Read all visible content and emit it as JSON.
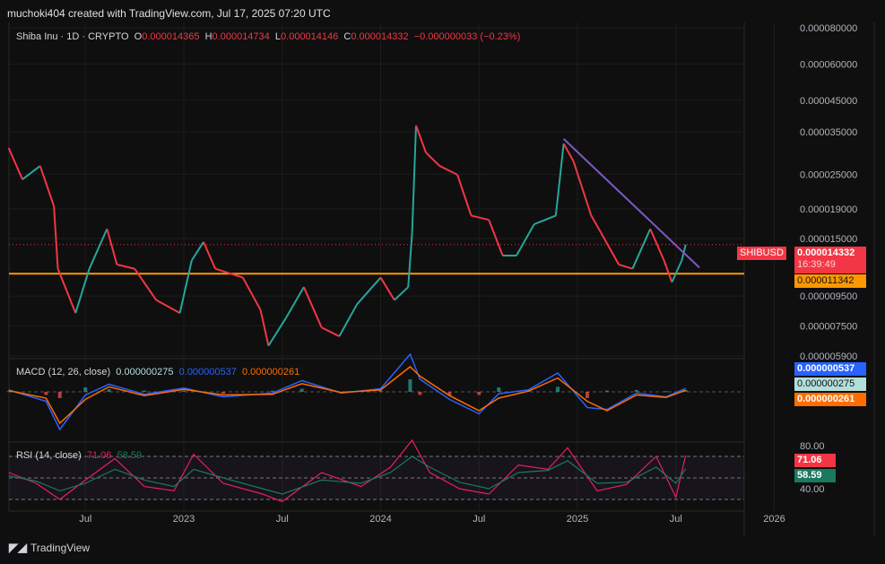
{
  "header": {
    "text": "muchoki404 created with TradingView.com, Jul 17, 2025 07:20 UTC"
  },
  "legend": {
    "symbol": "Shiba Inu · 1D · CRYPTO",
    "o_label": "O",
    "o": "0.000014365",
    "h_label": "H",
    "h": "0.000014734",
    "l_label": "L",
    "l": "0.000014146",
    "c_label": "C",
    "c": "0.000014332",
    "change": "−0.000000033 (−0.23%)"
  },
  "price_tag": {
    "ticker": "SHIBUSD",
    "price": "0.000014332",
    "countdown": "16:39:49"
  },
  "support_tag": "0.000011342",
  "macd": {
    "label": "MACD (12, 26, close)",
    "hist": "0.000000275",
    "macd": "0.000000537",
    "signal": "0.000000261"
  },
  "rsi": {
    "label": "RSI (14, close)",
    "rsi": "71.06",
    "ma": "58.59"
  },
  "footer": {
    "brand": "TradingView"
  },
  "colors": {
    "up": "#26a69a",
    "down": "#f23645",
    "trend": "#7e57c2",
    "support": "#ff9800",
    "macd": "#2962ff",
    "signal": "#ff6d00",
    "rsi": "#e91e63",
    "rsi_ma": "#1b7a5e"
  },
  "chart_data": {
    "type": "line",
    "price_scale": "log",
    "y_ticks": [
      "0.000080000",
      "0.000060000",
      "0.000045000",
      "0.000035000",
      "0.000025000",
      "0.000019000",
      "0.000015000",
      "0.000009500",
      "0.000007500",
      "0.000005900"
    ],
    "y_tick_values": [
      8e-05,
      6e-05,
      4.5e-05,
      3.5e-05,
      2.5e-05,
      1.9e-05,
      1.5e-05,
      9.5e-06,
      7.5e-06,
      5.9e-06
    ],
    "x_ticks": [
      {
        "label": "Jul",
        "t": 2022.5
      },
      {
        "label": "2023",
        "t": 2023.0
      },
      {
        "label": "Jul",
        "t": 2023.5
      },
      {
        "label": "2024",
        "t": 2024.0
      },
      {
        "label": "Jul",
        "t": 2024.5
      },
      {
        "label": "2025",
        "t": 2025.0
      },
      {
        "label": "Jul",
        "t": 2025.5
      },
      {
        "label": "2026",
        "t": 2026.0
      }
    ],
    "price_series": {
      "t": [
        2022.11,
        2022.18,
        2022.27,
        2022.34,
        2022.36,
        2022.45,
        2022.52,
        2022.61,
        2022.66,
        2022.75,
        2022.86,
        2022.98,
        2023.04,
        2023.1,
        2023.16,
        2023.3,
        2023.39,
        2023.43,
        2023.52,
        2023.61,
        2023.7,
        2023.79,
        2023.88,
        2024.0,
        2024.07,
        2024.14,
        2024.16,
        2024.18,
        2024.23,
        2024.3,
        2024.39,
        2024.46,
        2024.55,
        2024.62,
        2024.69,
        2024.78,
        2024.89,
        2024.93,
        2024.98,
        2025.07,
        2025.12,
        2025.21,
        2025.28,
        2025.37,
        2025.44,
        2025.48,
        2025.53,
        2025.55
      ],
      "close": [
        3.08e-05,
        2.4e-05,
        2.67e-05,
        1.94e-05,
        1.18e-05,
        8.3e-06,
        1.18e-05,
        1.62e-05,
        1.22e-05,
        1.18e-05,
        9.2e-06,
        8.3e-06,
        1.26e-05,
        1.46e-05,
        1.18e-05,
        1.1e-05,
        8.5e-06,
        6.4e-06,
        8e-06,
        1.02e-05,
        7.4e-06,
        6.9e-06,
        8.9e-06,
        1.1e-05,
        9.2e-06,
        1.02e-05,
        1.57e-05,
        3.68e-05,
        2.97e-05,
        2.67e-05,
        2.49e-05,
        1.8e-05,
        1.74e-05,
        1.31e-05,
        1.31e-05,
        1.68e-05,
        1.8e-05,
        3.19e-05,
        2.77e-05,
        1.8e-05,
        1.57e-05,
        1.22e-05,
        1.18e-05,
        1.62e-05,
        1.26e-05,
        1.06e-05,
        1.26e-05,
        1.43e-05
      ]
    },
    "trendline": {
      "t": [
        2024.93,
        2025.62
      ],
      "price": [
        3.31e-05,
        1.19e-05
      ]
    },
    "support": 1.1342e-05,
    "macd_series": {
      "t": [
        2022.11,
        2022.3,
        2022.37,
        2022.5,
        2022.62,
        2022.8,
        2023.0,
        2023.2,
        2023.45,
        2023.6,
        2023.8,
        2024.0,
        2024.15,
        2024.2,
        2024.35,
        2024.5,
        2024.6,
        2024.75,
        2024.9,
        2025.05,
        2025.15,
        2025.3,
        2025.45,
        2025.55
      ],
      "macd": [
        0.3,
        -1.5,
        -6,
        -0.5,
        1.2,
        -0.4,
        0.6,
        -0.8,
        -0.2,
        1.8,
        -0.2,
        0.5,
        6,
        2,
        -1.2,
        -3.5,
        -0.3,
        0.3,
        3,
        -2.5,
        -2.8,
        -0.2,
        -0.8,
        0.54
      ],
      "signal": [
        0.2,
        -1.0,
        -5,
        -1.2,
        0.8,
        -0.6,
        0.4,
        -0.5,
        -0.4,
        1.3,
        -0.1,
        0.3,
        4,
        2.5,
        -0.6,
        -3,
        -1,
        0.1,
        2.2,
        -1.5,
        -3,
        -0.5,
        -0.9,
        0.26
      ]
    },
    "rsi_series": {
      "t": [
        2022.11,
        2022.25,
        2022.37,
        2022.5,
        2022.65,
        2022.8,
        2022.95,
        2023.05,
        2023.2,
        2023.4,
        2023.5,
        2023.7,
        2023.9,
        2024.05,
        2024.16,
        2024.25,
        2024.4,
        2024.55,
        2024.7,
        2024.85,
        2024.95,
        2025.1,
        2025.25,
        2025.4,
        2025.5,
        2025.55
      ],
      "rsi": [
        55,
        45,
        30,
        48,
        68,
        42,
        38,
        72,
        45,
        35,
        28,
        55,
        42,
        60,
        85,
        55,
        40,
        35,
        62,
        58,
        78,
        38,
        44,
        70,
        32,
        71
      ],
      "ma": [
        52,
        47,
        38,
        45,
        58,
        48,
        42,
        58,
        50,
        40,
        35,
        48,
        45,
        55,
        70,
        60,
        46,
        40,
        55,
        57,
        66,
        45,
        46,
        60,
        45,
        58.6
      ]
    }
  }
}
